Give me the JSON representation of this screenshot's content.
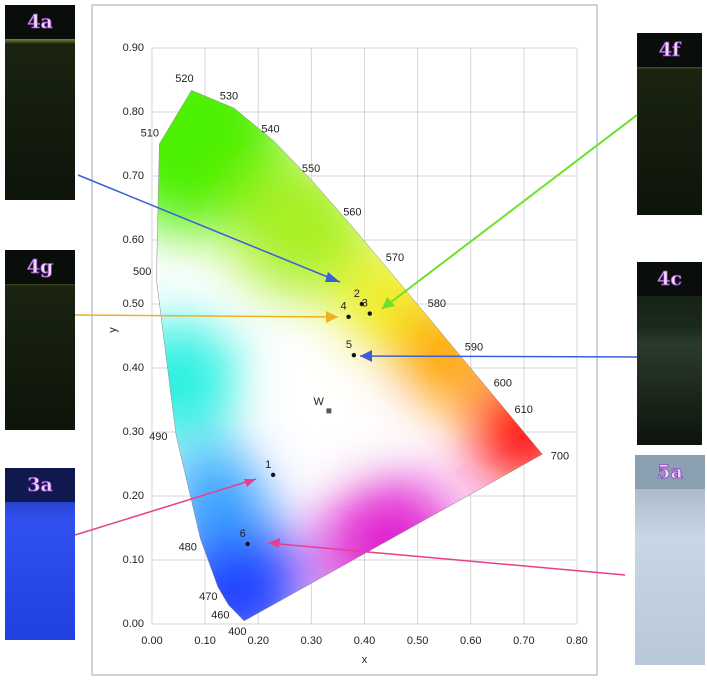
{
  "chart_data": {
    "type": "scatter",
    "xlabel": "x",
    "ylabel": "y",
    "xlim": [
      0,
      0.8
    ],
    "ylim": [
      0,
      0.9
    ],
    "grid": true,
    "xticks": [
      {
        "value": 0,
        "label": "0.00"
      },
      {
        "value": 0.1,
        "label": "0.10"
      },
      {
        "value": 0.2,
        "label": "0.20"
      },
      {
        "value": 0.3,
        "label": "0.30"
      },
      {
        "value": 0.4,
        "label": "0.40"
      },
      {
        "value": 0.5,
        "label": "0.50"
      },
      {
        "value": 0.6,
        "label": "0.60"
      },
      {
        "value": 0.7,
        "label": "0.70"
      },
      {
        "value": 0.8,
        "label": "0.80"
      }
    ],
    "yticks": [
      {
        "value": 0,
        "label": "0.00"
      },
      {
        "value": 0.1,
        "label": "0.10"
      },
      {
        "value": 0.2,
        "label": "0.20"
      },
      {
        "value": 0.3,
        "label": "0.30"
      },
      {
        "value": 0.4,
        "label": "0.40"
      },
      {
        "value": 0.5,
        "label": "0.50"
      },
      {
        "value": 0.6,
        "label": "0.60"
      },
      {
        "value": 0.7,
        "label": "0.70"
      },
      {
        "value": 0.8,
        "label": "0.80"
      },
      {
        "value": 0.9,
        "label": "0.90"
      }
    ],
    "series": [
      {
        "color": "#111111",
        "labels": [
          "1",
          "2",
          "3",
          "4",
          "5",
          "6"
        ],
        "x": [
          0.228,
          0.395,
          0.41,
          0.37,
          0.38,
          0.18
        ],
        "y": [
          0.233,
          0.5,
          0.485,
          0.48,
          0.42,
          0.125
        ]
      }
    ],
    "white_point": {
      "label": "W",
      "x": 0.333,
      "y": 0.333
    },
    "spectral_locus": {
      "labels": [
        "400",
        "460",
        "470",
        "480",
        "490",
        "500",
        "510",
        "520",
        "530",
        "540",
        "550",
        "560",
        "570",
        "580",
        "590",
        "600",
        "610",
        "700"
      ],
      "x": [
        0.1733,
        0.144,
        0.1241,
        0.0913,
        0.0454,
        0.0082,
        0.0139,
        0.0743,
        0.1547,
        0.2296,
        0.3016,
        0.3731,
        0.4441,
        0.5125,
        0.5752,
        0.627,
        0.6658,
        0.7347
      ],
      "y": [
        0.0048,
        0.0297,
        0.0578,
        0.1327,
        0.295,
        0.5384,
        0.7502,
        0.8338,
        0.8059,
        0.7543,
        0.6923,
        0.6245,
        0.5547,
        0.4866,
        0.4242,
        0.3725,
        0.334,
        0.2653
      ]
    }
  },
  "images": [
    {
      "label": "4a"
    },
    {
      "label": "4g"
    },
    {
      "label": "3a"
    },
    {
      "label": "4f"
    },
    {
      "label": "4c"
    },
    {
      "label": "5a"
    }
  ]
}
